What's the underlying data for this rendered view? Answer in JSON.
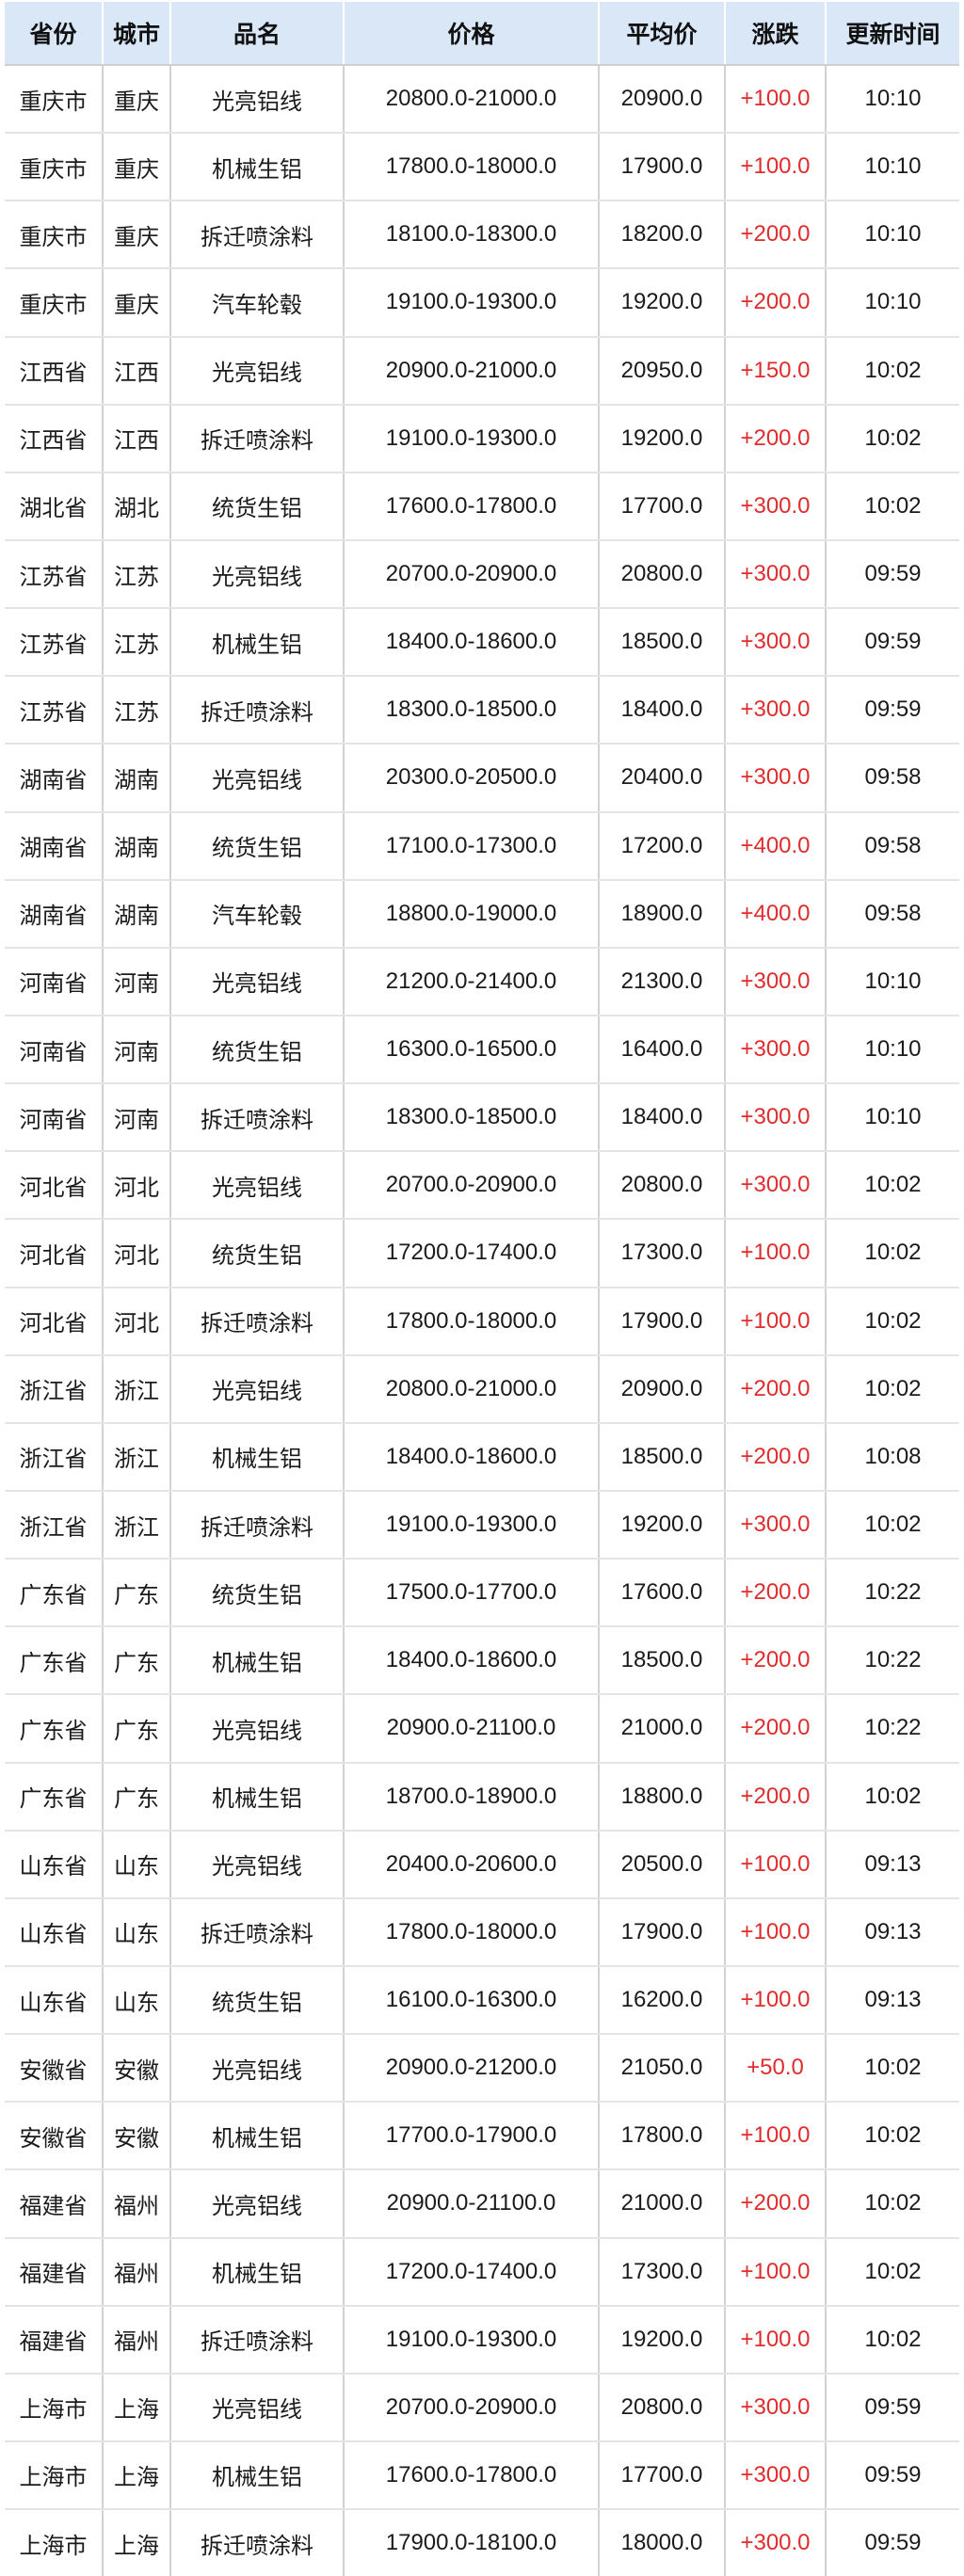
{
  "table": {
    "columns": [
      {
        "key": "province",
        "label": "省份"
      },
      {
        "key": "city",
        "label": "城市"
      },
      {
        "key": "product",
        "label": "品名"
      },
      {
        "key": "price_range",
        "label": "价格"
      },
      {
        "key": "avg_price",
        "label": "平均价"
      },
      {
        "key": "change",
        "label": "涨跌"
      },
      {
        "key": "updated",
        "label": "更新时间"
      }
    ],
    "rows": [
      [
        "重庆市",
        "重庆",
        "光亮铝线",
        "20800.0-21000.0",
        "20900.0",
        "+100.0",
        "10:10"
      ],
      [
        "重庆市",
        "重庆",
        "机械生铝",
        "17800.0-18000.0",
        "17900.0",
        "+100.0",
        "10:10"
      ],
      [
        "重庆市",
        "重庆",
        "拆迁喷涂料",
        "18100.0-18300.0",
        "18200.0",
        "+200.0",
        "10:10"
      ],
      [
        "重庆市",
        "重庆",
        "汽车轮毂",
        "19100.0-19300.0",
        "19200.0",
        "+200.0",
        "10:10"
      ],
      [
        "江西省",
        "江西",
        "光亮铝线",
        "20900.0-21000.0",
        "20950.0",
        "+150.0",
        "10:02"
      ],
      [
        "江西省",
        "江西",
        "拆迁喷涂料",
        "19100.0-19300.0",
        "19200.0",
        "+200.0",
        "10:02"
      ],
      [
        "湖北省",
        "湖北",
        "统货生铝",
        "17600.0-17800.0",
        "17700.0",
        "+300.0",
        "10:02"
      ],
      [
        "江苏省",
        "江苏",
        "光亮铝线",
        "20700.0-20900.0",
        "20800.0",
        "+300.0",
        "09:59"
      ],
      [
        "江苏省",
        "江苏",
        "机械生铝",
        "18400.0-18600.0",
        "18500.0",
        "+300.0",
        "09:59"
      ],
      [
        "江苏省",
        "江苏",
        "拆迁喷涂料",
        "18300.0-18500.0",
        "18400.0",
        "+300.0",
        "09:59"
      ],
      [
        "湖南省",
        "湖南",
        "光亮铝线",
        "20300.0-20500.0",
        "20400.0",
        "+300.0",
        "09:58"
      ],
      [
        "湖南省",
        "湖南",
        "统货生铝",
        "17100.0-17300.0",
        "17200.0",
        "+400.0",
        "09:58"
      ],
      [
        "湖南省",
        "湖南",
        "汽车轮毂",
        "18800.0-19000.0",
        "18900.0",
        "+400.0",
        "09:58"
      ],
      [
        "河南省",
        "河南",
        "光亮铝线",
        "21200.0-21400.0",
        "21300.0",
        "+300.0",
        "10:10"
      ],
      [
        "河南省",
        "河南",
        "统货生铝",
        "16300.0-16500.0",
        "16400.0",
        "+300.0",
        "10:10"
      ],
      [
        "河南省",
        "河南",
        "拆迁喷涂料",
        "18300.0-18500.0",
        "18400.0",
        "+300.0",
        "10:10"
      ],
      [
        "河北省",
        "河北",
        "光亮铝线",
        "20700.0-20900.0",
        "20800.0",
        "+300.0",
        "10:02"
      ],
      [
        "河北省",
        "河北",
        "统货生铝",
        "17200.0-17400.0",
        "17300.0",
        "+100.0",
        "10:02"
      ],
      [
        "河北省",
        "河北",
        "拆迁喷涂料",
        "17800.0-18000.0",
        "17900.0",
        "+100.0",
        "10:02"
      ],
      [
        "浙江省",
        "浙江",
        "光亮铝线",
        "20800.0-21000.0",
        "20900.0",
        "+200.0",
        "10:02"
      ],
      [
        "浙江省",
        "浙江",
        "机械生铝",
        "18400.0-18600.0",
        "18500.0",
        "+200.0",
        "10:08"
      ],
      [
        "浙江省",
        "浙江",
        "拆迁喷涂料",
        "19100.0-19300.0",
        "19200.0",
        "+300.0",
        "10:02"
      ],
      [
        "广东省",
        "广东",
        "统货生铝",
        "17500.0-17700.0",
        "17600.0",
        "+200.0",
        "10:22"
      ],
      [
        "广东省",
        "广东",
        "机械生铝",
        "18400.0-18600.0",
        "18500.0",
        "+200.0",
        "10:22"
      ],
      [
        "广东省",
        "广东",
        "光亮铝线",
        "20900.0-21100.0",
        "21000.0",
        "+200.0",
        "10:22"
      ],
      [
        "广东省",
        "广东",
        "机械生铝",
        "18700.0-18900.0",
        "18800.0",
        "+200.0",
        "10:02"
      ],
      [
        "山东省",
        "山东",
        "光亮铝线",
        "20400.0-20600.0",
        "20500.0",
        "+100.0",
        "09:13"
      ],
      [
        "山东省",
        "山东",
        "拆迁喷涂料",
        "17800.0-18000.0",
        "17900.0",
        "+100.0",
        "09:13"
      ],
      [
        "山东省",
        "山东",
        "统货生铝",
        "16100.0-16300.0",
        "16200.0",
        "+100.0",
        "09:13"
      ],
      [
        "安徽省",
        "安徽",
        "光亮铝线",
        "20900.0-21200.0",
        "21050.0",
        "+50.0",
        "10:02"
      ],
      [
        "安徽省",
        "安徽",
        "机械生铝",
        "17700.0-17900.0",
        "17800.0",
        "+100.0",
        "10:02"
      ],
      [
        "福建省",
        "福州",
        "光亮铝线",
        "20900.0-21100.0",
        "21000.0",
        "+200.0",
        "10:02"
      ],
      [
        "福建省",
        "福州",
        "机械生铝",
        "17200.0-17400.0",
        "17300.0",
        "+100.0",
        "10:02"
      ],
      [
        "福建省",
        "福州",
        "拆迁喷涂料",
        "19100.0-19300.0",
        "19200.0",
        "+100.0",
        "10:02"
      ],
      [
        "上海市",
        "上海",
        "光亮铝线",
        "20700.0-20900.0",
        "20800.0",
        "+300.0",
        "09:59"
      ],
      [
        "上海市",
        "上海",
        "机械生铝",
        "17600.0-17800.0",
        "17700.0",
        "+300.0",
        "09:59"
      ],
      [
        "上海市",
        "上海",
        "拆迁喷涂料",
        "17900.0-18100.0",
        "18000.0",
        "+300.0",
        "09:59"
      ]
    ]
  },
  "colors": {
    "background": "#ffffff",
    "header_bg": "#d9e7f6",
    "header_text": "#111111",
    "header_divider": "#cfcfcf",
    "text": "#1b1b1b",
    "grid_line": "#d2d2d2",
    "row_divider": "#e4e4e4",
    "change_up": "#e02c2c"
  }
}
